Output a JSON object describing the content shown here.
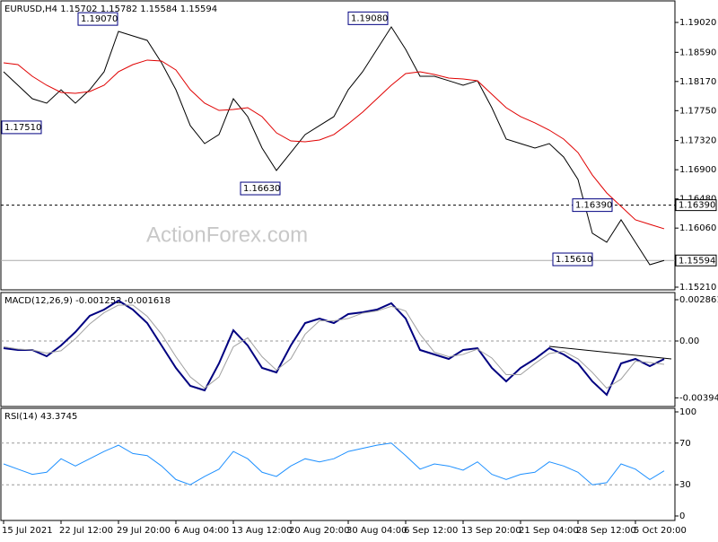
{
  "chart_data": [
    {
      "type": "line",
      "title": "EURUSD,H4  1.15702 1.15782 1.15584 1.15594",
      "watermark": "ActionForex.com",
      "ylim": [
        1.15184,
        1.19317
      ],
      "yticks": [
        {
          "value": 1.1902,
          "label": "1.19020"
        },
        {
          "value": 1.1859,
          "label": "1.18590"
        },
        {
          "value": 1.1817,
          "label": "1.18170"
        },
        {
          "value": 1.1775,
          "label": "1.17750"
        },
        {
          "value": 1.1732,
          "label": "1.17320"
        },
        {
          "value": 1.169,
          "label": "1.16900"
        },
        {
          "value": 1.1648,
          "label": "1.16480"
        },
        {
          "value": 1.1606,
          "label": "1.16060"
        },
        {
          "value": 1.1521,
          "label": "1.15210"
        }
      ],
      "hline": {
        "value": 1.1639,
        "label": "1.16390"
      },
      "last_price": {
        "value": 1.15594,
        "label": "1.15594"
      },
      "annotations": [
        {
          "value": 1.1907,
          "label": "1.19070"
        },
        {
          "value": 1.1908,
          "label": "1.19080"
        },
        {
          "value": 1.1751,
          "label": "1.17510"
        },
        {
          "value": 1.1663,
          "label": "1.16630"
        },
        {
          "value": 1.1639,
          "label": "1.16390"
        },
        {
          "value": 1.1561,
          "label": "1.15610"
        }
      ],
      "series": [
        {
          "color": "#000000",
          "values": [
            1.1831,
            1.18116,
            1.17922,
            1.17858,
            1.18051,
            1.17858,
            1.18051,
            1.1831,
            1.18891,
            1.18826,
            1.18762,
            1.18439,
            1.18051,
            1.17535,
            1.17276,
            1.17406,
            1.17922,
            1.17664,
            1.17212,
            1.16889,
            1.17147,
            1.17406,
            1.17535,
            1.17664,
            1.18051,
            1.1831,
            1.18633,
            1.18955,
            1.18633,
            1.18245,
            1.18245,
            1.18181,
            1.18116,
            1.18181,
            1.17793,
            1.17341,
            1.17276,
            1.17212,
            1.17276,
            1.17083,
            1.1676,
            1.15985,
            1.15856,
            1.16179,
            1.15856,
            1.15533,
            1.15594
          ]
        },
        {
          "color": "#e00000",
          "values": [
            1.18439,
            1.18413,
            1.18245,
            1.18116,
            1.18013,
            1.18,
            1.18026,
            1.18116,
            1.1831,
            1.18413,
            1.18478,
            1.18465,
            1.18336,
            1.18051,
            1.17858,
            1.17754,
            1.17767,
            1.17793,
            1.17664,
            1.17431,
            1.17315,
            1.17302,
            1.17328,
            1.17406,
            1.17561,
            1.17728,
            1.17922,
            1.18116,
            1.18284,
            1.1831,
            1.18271,
            1.18219,
            1.18206,
            1.18181,
            1.17987,
            1.17793,
            1.17664,
            1.17574,
            1.1747,
            1.17341,
            1.17147,
            1.16824,
            1.16566,
            1.16372,
            1.16179,
            1.16114,
            1.1605
          ]
        }
      ]
    },
    {
      "type": "line",
      "title": "MACD(12,26,9) -0.001252 -0.001618",
      "ylim": [
        -0.004478,
        0.003296
      ],
      "yticks": [
        0.002861,
        {
          "value": 0,
          "label": "0.00"
        },
        -0.00394
      ],
      "series": [
        {
          "color": "#000080",
          "values": [
            -0.000498,
            -0.000622,
            -0.000622,
            -0.001057,
            -0.000311,
            0.000622,
            0.001742,
            0.002177,
            0.002799,
            0.002177,
            0.001244,
            -0.000311,
            -0.001866,
            -0.00311,
            -0.003421,
            -0.001555,
            0.000746,
            -0.000311,
            -0.001866,
            -0.002177,
            -0.000311,
            0.001244,
            0.001555,
            0.001244,
            0.001866,
            0.00199,
            0.002177,
            0.002612,
            0.001555,
            -0.000622,
            -0.000933,
            -0.001244,
            -0.000622,
            -0.000498,
            -0.001866,
            -0.002799,
            -0.001866,
            -0.001244,
            -0.000498,
            -0.000933,
            -0.001555,
            -0.002799,
            -0.003732,
            -0.001555,
            -0.001244,
            -0.001742,
            -0.001252
          ]
        },
        {
          "color": "#a0a0a0",
          "values": [
            -0.0004,
            -0.00056,
            -0.00062,
            -0.00084,
            -0.00068,
            0.00016,
            0.00118,
            0.00196,
            0.00249,
            0.00249,
            0.00171,
            0.00047,
            -0.00109,
            -0.00249,
            -0.00327,
            -0.00249,
            -0.0004,
            0.00022,
            -0.00109,
            -0.00202,
            -0.00124,
            0.00047,
            0.0014,
            0.0014,
            0.00156,
            0.00193,
            0.00208,
            0.0024,
            0.00208,
            0.00047,
            -0.00078,
            -0.00109,
            -0.00093,
            -0.00056,
            -0.00118,
            -0.00233,
            -0.00233,
            -0.00156,
            -0.00087,
            -0.00071,
            -0.00124,
            -0.00218,
            -0.00327,
            -0.00264,
            -0.0014,
            -0.00149,
            -0.001618
          ]
        }
      ]
    },
    {
      "type": "line",
      "title": "RSI(14) 43.3745",
      "ylim": [
        0,
        100
      ],
      "yticks": [
        100,
        70,
        30,
        0
      ],
      "levels": [
        70,
        30
      ],
      "categories": [
        "15 Jul 2021",
        null,
        null,
        null,
        "22 Jul 12:00",
        null,
        null,
        null,
        "29 Jul 20:00",
        null,
        null,
        null,
        "6 Aug 04:00",
        null,
        null,
        null,
        "13 Aug 12:00",
        null,
        null,
        null,
        "20 Aug 20:00",
        null,
        null,
        null,
        "30 Aug 04:00",
        null,
        null,
        null,
        "6 Sep 12:00",
        null,
        null,
        null,
        "13 Sep 20:00",
        null,
        null,
        null,
        "21 Sep 04:00",
        null,
        null,
        null,
        "28 Sep 12:00",
        null,
        null,
        null,
        "5 Oct 20:00",
        null,
        null
      ],
      "series": [
        {
          "color": "#1e90ff",
          "values": [
            50,
            45,
            40,
            42,
            55,
            48,
            55,
            62,
            68,
            60,
            58,
            48,
            35,
            30,
            38,
            45,
            62,
            55,
            42,
            38,
            48,
            55,
            52,
            55,
            62,
            65,
            68,
            70,
            58,
            45,
            50,
            48,
            44,
            52,
            40,
            35,
            40,
            42,
            52,
            48,
            42,
            30,
            32,
            50,
            45,
            35,
            43.3745
          ]
        }
      ]
    }
  ]
}
